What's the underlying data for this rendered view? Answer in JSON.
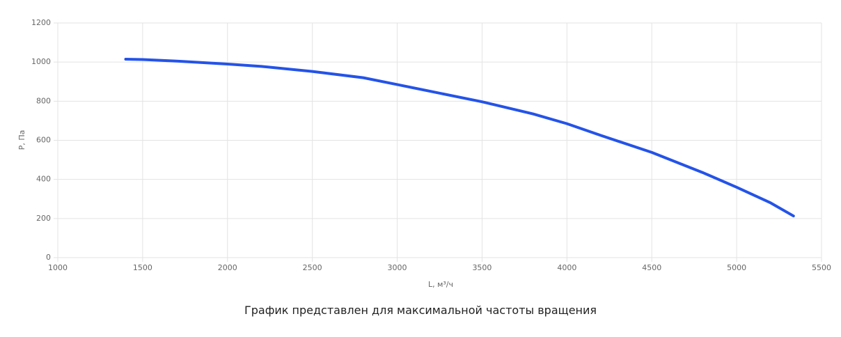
{
  "chart_data": {
    "type": "line",
    "x_label": "L, м³/ч",
    "y_label": "P, Па",
    "caption": "График представлен для максимальной частоты вращения",
    "series": [
      {
        "name": "P",
        "color": "#2453e8",
        "x": [
          1400,
          1500,
          1700,
          2000,
          2200,
          2500,
          2800,
          3000,
          3500,
          3800,
          4000,
          4200,
          4500,
          4800,
          5000,
          5200,
          5335
        ],
        "values": [
          1015,
          1013,
          1005,
          990,
          978,
          952,
          920,
          885,
          797,
          735,
          685,
          625,
          538,
          435,
          360,
          280,
          213
        ]
      }
    ],
    "xlim": [
      1000,
      5500
    ],
    "xticks": [
      1000,
      1500,
      2000,
      2500,
      3000,
      3500,
      4000,
      4500,
      5000,
      5500
    ],
    "ylim": [
      0,
      1200
    ],
    "yticks": [
      0,
      200,
      400,
      600,
      800,
      1000,
      1200
    ],
    "grid": true
  }
}
